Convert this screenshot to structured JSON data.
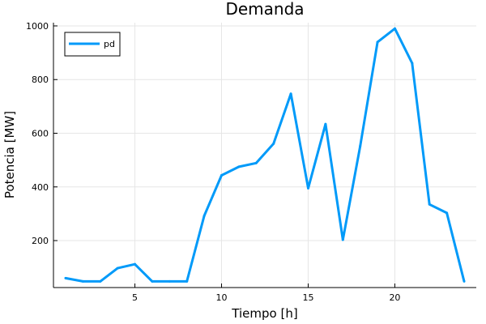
{
  "chart_data": {
    "type": "line",
    "title": "Demanda",
    "xlabel": "Tiempo [h]",
    "ylabel": "Potencia [MW]",
    "x": [
      1,
      2,
      3,
      4,
      5,
      6,
      7,
      8,
      9,
      10,
      11,
      12,
      13,
      14,
      15,
      16,
      17,
      18,
      19,
      20,
      21,
      22,
      23,
      24
    ],
    "series": [
      {
        "name": "pd",
        "color": "#009af9",
        "values": [
          60,
          48,
          48,
          97,
          112,
          48,
          48,
          48,
          292,
          443,
          475,
          489,
          561,
          747,
          395,
          634,
          203,
          552,
          940,
          990,
          861,
          335,
          303,
          48
        ]
      }
    ],
    "xlim": [
      0.3,
      24.7
    ],
    "ylim": [
      25,
      1012
    ],
    "xticks": [
      5,
      10,
      15,
      20
    ],
    "yticks": [
      200,
      400,
      600,
      800,
      1000
    ],
    "grid": true,
    "legend": "top-left"
  }
}
